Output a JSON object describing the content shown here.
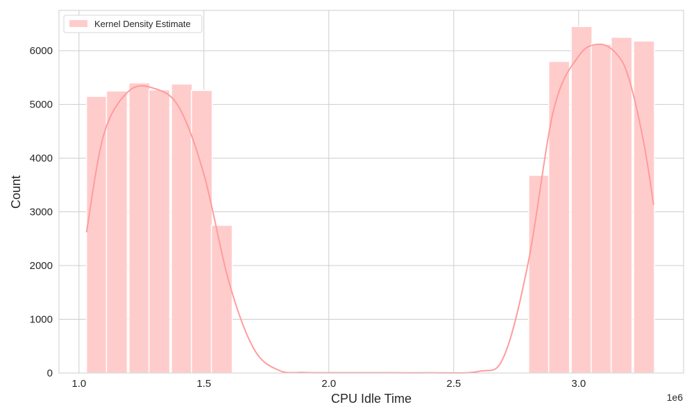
{
  "chart_data": {
    "type": "bar",
    "title": "",
    "xlabel": "CPU Idle Time",
    "ylabel": "Count",
    "x_offset_label": "1e6",
    "xlim": [
      0.92,
      3.42
    ],
    "ylim": [
      0,
      6750
    ],
    "x_ticks": [
      1.0,
      1.5,
      2.0,
      2.5,
      3.0
    ],
    "x_tick_labels": [
      "1.0",
      "1.5",
      "2.0",
      "2.5",
      "3.0"
    ],
    "y_ticks": [
      0,
      1000,
      2000,
      3000,
      4000,
      5000,
      6000
    ],
    "y_tick_labels": [
      "0",
      "1000",
      "2000",
      "3000",
      "4000",
      "5000",
      "6000"
    ],
    "bar_width": 0.0835,
    "bins": [
      {
        "x": 1.03,
        "count": 5150
      },
      {
        "x": 1.11,
        "count": 5250
      },
      {
        "x": 1.2,
        "count": 5400
      },
      {
        "x": 1.28,
        "count": 5270
      },
      {
        "x": 1.37,
        "count": 5380
      },
      {
        "x": 1.45,
        "count": 5260
      },
      {
        "x": 1.53,
        "count": 2750
      },
      {
        "x": 2.8,
        "count": 3680
      },
      {
        "x": 2.88,
        "count": 5800
      },
      {
        "x": 2.97,
        "count": 6450
      },
      {
        "x": 3.05,
        "count": 6120
      },
      {
        "x": 3.13,
        "count": 6250
      },
      {
        "x": 3.22,
        "count": 6180
      }
    ],
    "kde": {
      "x": [
        1.03,
        1.1,
        1.2,
        1.3,
        1.4,
        1.5,
        1.6,
        1.7,
        1.8,
        1.9,
        2.0,
        2.2,
        2.4,
        2.6,
        2.7,
        2.8,
        2.9,
        3.0,
        3.08,
        3.15,
        3.2,
        3.26,
        3.3
      ],
      "y": [
        2620,
        4450,
        5250,
        5300,
        4950,
        3700,
        1700,
        450,
        50,
        10,
        5,
        5,
        5,
        30,
        300,
        2100,
        4900,
        5900,
        6120,
        5950,
        5500,
        4300,
        3130
      ]
    },
    "bar_color": "#ffcccc",
    "line_color": "#ff9b9b",
    "grid": true,
    "legend": {
      "position": "top-left",
      "entries": [
        "Kernel Density Estimate"
      ]
    }
  }
}
